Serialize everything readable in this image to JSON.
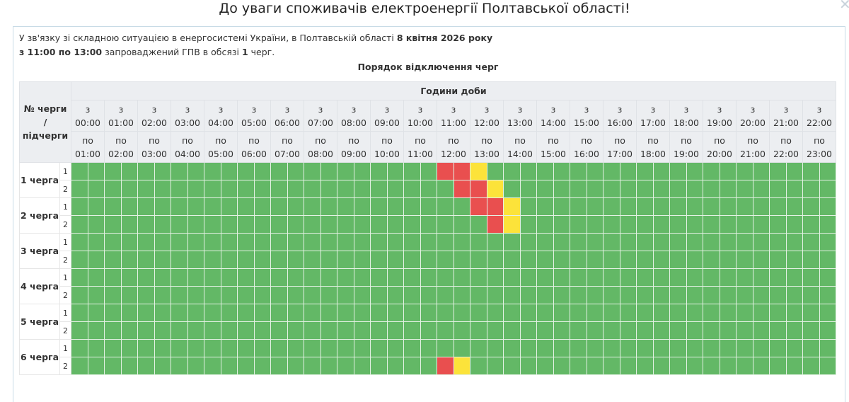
{
  "title": "До уваги споживачів електроенергії Полтавської області!",
  "intro": {
    "line1_prefix": "У зв'язку зі складною ситуацією в енергосистемі України, в Полтавській області ",
    "date": "8 квітня 2026 року",
    "period": "з 11:00 по 13:00",
    "line2_middle": " запроваджений ГПВ в обсязі ",
    "volume": "1",
    "line2_suffix": " черг."
  },
  "subtitle": "Порядок відключення черг",
  "table": {
    "corner_label": [
      "№ черги",
      "/",
      "підчерги"
    ],
    "hours_header": "Години доби",
    "from_prefix": "з",
    "to_prefix": "по",
    "hours": [
      [
        "00:00",
        "01:00"
      ],
      [
        "01:00",
        "02:00"
      ],
      [
        "02:00",
        "03:00"
      ],
      [
        "03:00",
        "04:00"
      ],
      [
        "04:00",
        "05:00"
      ],
      [
        "05:00",
        "06:00"
      ],
      [
        "06:00",
        "07:00"
      ],
      [
        "07:00",
        "08:00"
      ],
      [
        "08:00",
        "09:00"
      ],
      [
        "09:00",
        "10:00"
      ],
      [
        "10:00",
        "11:00"
      ],
      [
        "11:00",
        "12:00"
      ],
      [
        "12:00",
        "13:00"
      ],
      [
        "13:00",
        "14:00"
      ],
      [
        "14:00",
        "15:00"
      ],
      [
        "15:00",
        "16:00"
      ],
      [
        "16:00",
        "17:00"
      ],
      [
        "17:00",
        "18:00"
      ],
      [
        "18:00",
        "19:00"
      ],
      [
        "19:00",
        "20:00"
      ],
      [
        "20:00",
        "21:00"
      ],
      [
        "21:00",
        "22:00"
      ],
      [
        "22:00",
        "23:00"
      ]
    ],
    "colors": {
      "on": "#63b866",
      "off": "#e94f4f",
      "possible": "#fce33a"
    },
    "queues": [
      {
        "label": "1 черга",
        "subqueues": [
          {
            "label": "1",
            "slots": [
              {
                "start": "11:00",
                "status": "off"
              },
              {
                "start": "11:30",
                "status": "off"
              },
              {
                "start": "12:00",
                "status": "possible"
              }
            ]
          },
          {
            "label": "2",
            "slots": [
              {
                "start": "11:30",
                "status": "off"
              },
              {
                "start": "12:00",
                "status": "off"
              },
              {
                "start": "12:30",
                "status": "possible"
              }
            ]
          }
        ]
      },
      {
        "label": "2 черга",
        "subqueues": [
          {
            "label": "1",
            "slots": [
              {
                "start": "12:00",
                "status": "off"
              },
              {
                "start": "12:30",
                "status": "off"
              },
              {
                "start": "13:00",
                "status": "possible"
              }
            ]
          },
          {
            "label": "2",
            "slots": [
              {
                "start": "12:30",
                "status": "off"
              },
              {
                "start": "13:00",
                "status": "possible"
              }
            ]
          }
        ]
      },
      {
        "label": "3 черга",
        "subqueues": [
          {
            "label": "1",
            "slots": []
          },
          {
            "label": "2",
            "slots": []
          }
        ]
      },
      {
        "label": "4 черга",
        "subqueues": [
          {
            "label": "1",
            "slots": []
          },
          {
            "label": "2",
            "slots": []
          }
        ]
      },
      {
        "label": "5 черга",
        "subqueues": [
          {
            "label": "1",
            "slots": []
          },
          {
            "label": "2",
            "slots": []
          }
        ]
      },
      {
        "label": "6 черга",
        "subqueues": [
          {
            "label": "1",
            "slots": []
          },
          {
            "label": "2",
            "slots": [
              {
                "start": "11:00",
                "status": "off"
              },
              {
                "start": "11:30",
                "status": "possible"
              }
            ]
          }
        ]
      }
    ]
  }
}
